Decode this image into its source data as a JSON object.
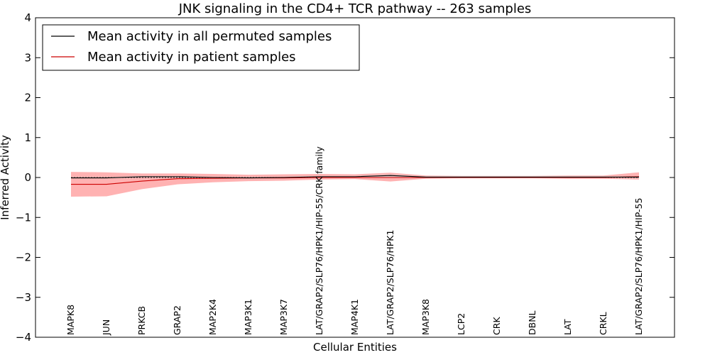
{
  "chart_data": {
    "type": "line",
    "title": "JNK signaling in the CD4+ TCR pathway -- 263 samples",
    "xlabel": "Cellular Entities",
    "ylabel": "Inferred Activity",
    "ylim": [
      -4,
      4
    ],
    "yticks": [
      4,
      3,
      2,
      1,
      0,
      -1,
      -2,
      -3,
      -4
    ],
    "ytick_labels": [
      "4",
      "3",
      "2",
      "1",
      "0",
      "−1",
      "−2",
      "−3",
      "−4"
    ],
    "grid": false,
    "legend_position": "top-left",
    "categories": [
      "MAPK8",
      "JUN",
      "PRKCB",
      "GRAP2",
      "MAP2K4",
      "MAP3K1",
      "MAP3K7",
      "LAT/GRAP2/SLP76/HPK1/HIP-55/CRK family",
      "MAP4K1",
      "LAT/GRAP2/SLP76/HPK1",
      "MAP3K8",
      "LCP2",
      "CRK",
      "DBNL",
      "LAT",
      "CRKL",
      "LAT/GRAP2/SLP76/HPK1/HIP-55"
    ],
    "series": [
      {
        "name": "Mean activity in all permuted samples",
        "color": "#000000",
        "values": [
          -0.01,
          -0.01,
          0.02,
          0.02,
          0.0,
          -0.01,
          0.0,
          0.02,
          0.02,
          0.05,
          0.01,
          0.01,
          0.01,
          0.01,
          0.01,
          0.01,
          0.01
        ],
        "band_low": [
          -0.02,
          -0.02,
          0.0,
          0.0,
          -0.01,
          -0.02,
          -0.01,
          0.0,
          0.0,
          0.01,
          0.0,
          0.0,
          0.0,
          0.0,
          0.0,
          0.0,
          -0.01
        ],
        "band_high": [
          0.01,
          0.01,
          0.04,
          0.04,
          0.02,
          0.01,
          0.02,
          0.04,
          0.04,
          0.08,
          0.03,
          0.03,
          0.03,
          0.03,
          0.03,
          0.03,
          0.03
        ],
        "band_color": "#cccccc"
      },
      {
        "name": "Mean activity in patient samples",
        "color": "#cc0000",
        "values": [
          -0.17,
          -0.17,
          -0.09,
          -0.03,
          -0.02,
          -0.01,
          -0.01,
          0.0,
          0.0,
          0.0,
          0.0,
          0.0,
          0.0,
          0.0,
          0.0,
          0.0,
          0.02
        ],
        "band_low": [
          -0.48,
          -0.47,
          -0.29,
          -0.17,
          -0.12,
          -0.09,
          -0.08,
          -0.05,
          -0.04,
          -0.1,
          -0.03,
          -0.02,
          -0.02,
          -0.02,
          -0.03,
          -0.03,
          -0.05
        ],
        "band_high": [
          0.14,
          0.13,
          0.1,
          0.1,
          0.09,
          0.07,
          0.08,
          0.09,
          0.08,
          0.12,
          0.05,
          0.04,
          0.04,
          0.04,
          0.05,
          0.05,
          0.13
        ],
        "band_color": "#ff6666"
      }
    ]
  }
}
